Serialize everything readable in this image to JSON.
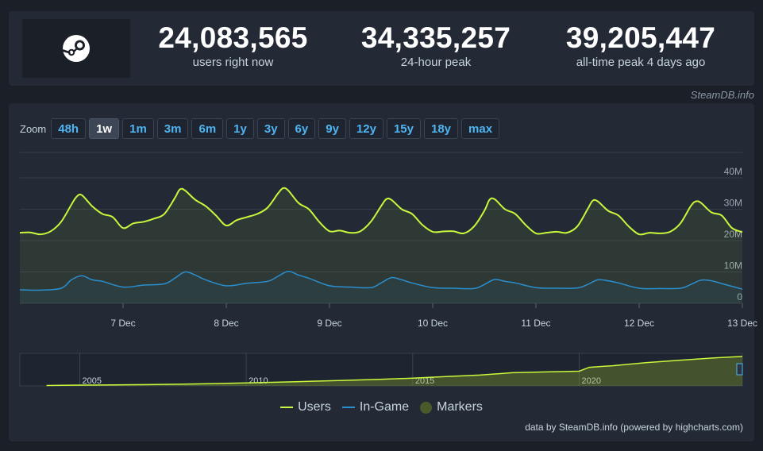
{
  "stats": {
    "current": {
      "value": "24,083,565",
      "label": "users right now"
    },
    "peak24h": {
      "value": "34,335,257",
      "label": "24-hour peak"
    },
    "alltime": {
      "value": "39,205,447",
      "label": "all-time peak 4 days ago"
    }
  },
  "credit_top": "SteamDB.info",
  "zoom": {
    "label": "Zoom",
    "options": [
      "48h",
      "1w",
      "1m",
      "3m",
      "6m",
      "1y",
      "3y",
      "6y",
      "9y",
      "12y",
      "15y",
      "18y",
      "max"
    ],
    "selected": "1w"
  },
  "colors": {
    "users": "#c8f73b",
    "in_game": "#2a8fcf",
    "markers": "#4a5a2a",
    "accent": "#4fb4f2"
  },
  "chart_data": {
    "type": "line",
    "x_axis": {
      "ticks": [
        "7 Dec",
        "8 Dec",
        "9 Dec",
        "10 Dec",
        "11 Dec",
        "12 Dec",
        "13 Dec"
      ],
      "range_days": [
        6.0,
        13.0
      ]
    },
    "y_axis": {
      "ticks": [
        "0",
        "10M",
        "20M",
        "30M",
        "40M"
      ],
      "range": [
        0,
        40000000
      ]
    },
    "grid": true,
    "legend_position": "bottom-center",
    "series": [
      {
        "name": "Users",
        "x": [
          6.0,
          6.1,
          6.2,
          6.3,
          6.4,
          6.5,
          6.55,
          6.6,
          6.7,
          6.8,
          6.9,
          7.0,
          7.1,
          7.2,
          7.3,
          7.4,
          7.5,
          7.55,
          7.6,
          7.7,
          7.8,
          7.9,
          8.0,
          8.1,
          8.2,
          8.3,
          8.4,
          8.5,
          8.55,
          8.6,
          8.7,
          8.8,
          8.9,
          9.0,
          9.1,
          9.2,
          9.3,
          9.4,
          9.5,
          9.55,
          9.6,
          9.7,
          9.8,
          9.9,
          10.0,
          10.1,
          10.2,
          10.3,
          10.4,
          10.5,
          10.55,
          10.6,
          10.7,
          10.8,
          10.9,
          11.0,
          11.1,
          11.2,
          11.3,
          11.4,
          11.5,
          11.55,
          11.6,
          11.7,
          11.8,
          11.9,
          12.0,
          12.1,
          12.2,
          12.3,
          12.4,
          12.5,
          12.55,
          12.6,
          12.7,
          12.8,
          12.9,
          13.0
        ],
        "values": [
          22.5,
          22.6,
          22.0,
          23.0,
          26.0,
          31.5,
          34.0,
          34.5,
          31.0,
          28.5,
          27.5,
          24.0,
          25.5,
          26.0,
          27.0,
          28.5,
          33.5,
          36.3,
          36.0,
          33.0,
          31.0,
          28.0,
          24.8,
          26.5,
          27.5,
          28.5,
          30.5,
          35.0,
          36.7,
          36.0,
          32.0,
          30.0,
          26.0,
          23.0,
          23.2,
          22.5,
          23.0,
          26.0,
          31.0,
          33.2,
          33.0,
          30.0,
          28.5,
          25.0,
          22.8,
          22.9,
          23.0,
          22.3,
          24.5,
          29.5,
          33.0,
          33.2,
          30.0,
          28.5,
          25.0,
          22.3,
          22.5,
          22.8,
          22.5,
          24.5,
          30.0,
          32.7,
          32.5,
          29.5,
          28.0,
          24.5,
          22.0,
          22.5,
          22.3,
          22.8,
          25.5,
          31.0,
          32.5,
          32.0,
          29.0,
          28.0,
          24.0,
          22.7
        ],
        "unit": "millions"
      },
      {
        "name": "In-Game",
        "x": [
          6.0,
          6.2,
          6.4,
          6.5,
          6.6,
          6.7,
          6.8,
          7.0,
          7.2,
          7.4,
          7.5,
          7.6,
          7.7,
          7.8,
          8.0,
          8.2,
          8.4,
          8.5,
          8.6,
          8.7,
          8.8,
          9.0,
          9.2,
          9.4,
          9.5,
          9.6,
          9.7,
          9.8,
          10.0,
          10.2,
          10.4,
          10.5,
          10.6,
          10.7,
          10.8,
          11.0,
          11.2,
          11.4,
          11.5,
          11.6,
          11.7,
          11.8,
          12.0,
          12.2,
          12.4,
          12.5,
          12.6,
          12.7,
          12.8,
          13.0
        ],
        "values": [
          4.3,
          4.2,
          4.8,
          7.5,
          8.8,
          7.5,
          7.0,
          5.2,
          5.8,
          6.2,
          8.0,
          10.0,
          9.0,
          7.5,
          5.6,
          6.4,
          7.0,
          8.6,
          10.2,
          9.0,
          8.0,
          5.6,
          5.2,
          5.0,
          6.5,
          8.2,
          7.5,
          6.5,
          5.0,
          4.8,
          4.7,
          6.0,
          7.6,
          7.0,
          6.5,
          5.0,
          4.8,
          4.9,
          6.0,
          7.5,
          7.2,
          6.5,
          4.8,
          4.7,
          4.8,
          6.0,
          7.4,
          7.2,
          6.3,
          4.5
        ],
        "unit": "millions"
      }
    ],
    "navigator": {
      "ticks": [
        "2005",
        "2010",
        "2015",
        "2020"
      ],
      "x": [
        2004.0,
        2005.0,
        2006.0,
        2007.0,
        2008.0,
        2009.0,
        2010.0,
        2011.0,
        2012.0,
        2013.0,
        2014.0,
        2015.0,
        2016.0,
        2017.0,
        2018.0,
        2019.0,
        2020.0,
        2020.3,
        2021.0,
        2022.0,
        2023.0,
        2024.0,
        2024.9
      ],
      "values": [
        0.5,
        1.0,
        1.2,
        1.6,
        2.2,
        3.0,
        3.8,
        4.8,
        6.0,
        7.2,
        8.5,
        10.0,
        12.0,
        14.0,
        17.0,
        18.0,
        19.0,
        24.0,
        26.0,
        30.0,
        33.0,
        36.0,
        38.0
      ]
    }
  },
  "legend": {
    "users": "Users",
    "in_game": "In-Game",
    "markers": "Markers"
  },
  "credit_bottom": "data by SteamDB.info (powered by highcharts.com)"
}
